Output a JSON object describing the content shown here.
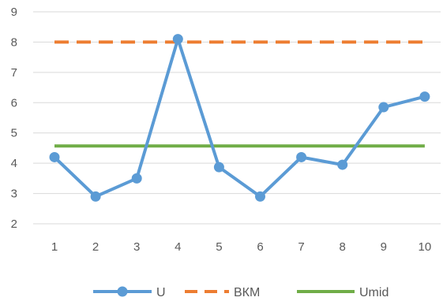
{
  "chart_data": {
    "type": "line",
    "title": "",
    "xlabel": "",
    "ylabel": "",
    "x": [
      1,
      2,
      3,
      4,
      5,
      6,
      7,
      8,
      9,
      10
    ],
    "x_tick_labels": [
      "1",
      "2",
      "3",
      "4",
      "5",
      "6",
      "7",
      "8",
      "9",
      "10"
    ],
    "y_tick_labels": [
      "2",
      "3",
      "4",
      "5",
      "6",
      "7",
      "8",
      "9"
    ],
    "ylim": [
      2,
      9
    ],
    "y_ticks": [
      2,
      3,
      4,
      5,
      6,
      7,
      8,
      9
    ],
    "grid": "horizontal",
    "legend_position": "bottom",
    "series": [
      {
        "name": "U",
        "values": [
          4.2,
          2.9,
          3.5,
          8.1,
          3.87,
          2.9,
          4.2,
          3.95,
          5.85,
          6.2
        ],
        "color": "#5B9BD5",
        "style": "solid",
        "markers": true
      },
      {
        "name": "ВКМ",
        "values": [
          8,
          8,
          8,
          8,
          8,
          8,
          8,
          8,
          8,
          8
        ],
        "color": "#ED7D31",
        "style": "dashed",
        "markers": false
      },
      {
        "name": "Umid",
        "values": [
          4.57,
          4.57,
          4.57,
          4.57,
          4.57,
          4.57,
          4.57,
          4.57,
          4.57,
          4.57
        ],
        "color": "#70AD47",
        "style": "solid",
        "markers": false
      }
    ]
  }
}
